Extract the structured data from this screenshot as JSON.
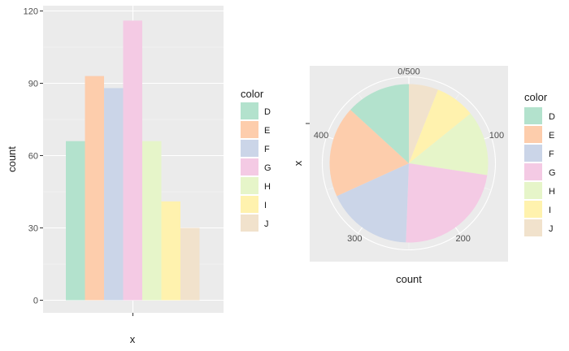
{
  "chart_data": [
    {
      "type": "bar",
      "categories": [
        "D",
        "E",
        "F",
        "G",
        "H",
        "I",
        "J"
      ],
      "values": [
        66,
        93,
        88,
        116,
        66,
        41,
        30
      ],
      "colors": [
        "#b3e2cd",
        "#fdcdac",
        "#cbd5e8",
        "#f4cae4",
        "#e6f5c9",
        "#fff2ae",
        "#f1e2cc"
      ],
      "xlabel": "x",
      "ylabel": "count",
      "ylim": [
        0,
        120
      ],
      "yticks": [
        "0",
        "30",
        "60",
        "90",
        "120"
      ],
      "grid": true,
      "legend": {
        "title": "color",
        "labels": [
          "D",
          "E",
          "F",
          "G",
          "H",
          "I",
          "J"
        ],
        "placement": "right"
      }
    },
    {
      "type": "pie",
      "categories": [
        "D",
        "E",
        "F",
        "G",
        "H",
        "I",
        "J"
      ],
      "values": [
        66,
        93,
        88,
        116,
        66,
        41,
        30
      ],
      "colors": [
        "#b3e2cd",
        "#fdcdac",
        "#cbd5e8",
        "#f4cae4",
        "#e6f5c9",
        "#fff2ae",
        "#f1e2cc"
      ],
      "xlabel": "count",
      "ylabel": "x",
      "theta_ticks": [
        "0/500",
        "100",
        "200",
        "300",
        "400"
      ],
      "grid": true,
      "legend": {
        "title": "color",
        "labels": [
          "D",
          "E",
          "F",
          "G",
          "H",
          "I",
          "J"
        ],
        "placement": "right"
      }
    }
  ]
}
